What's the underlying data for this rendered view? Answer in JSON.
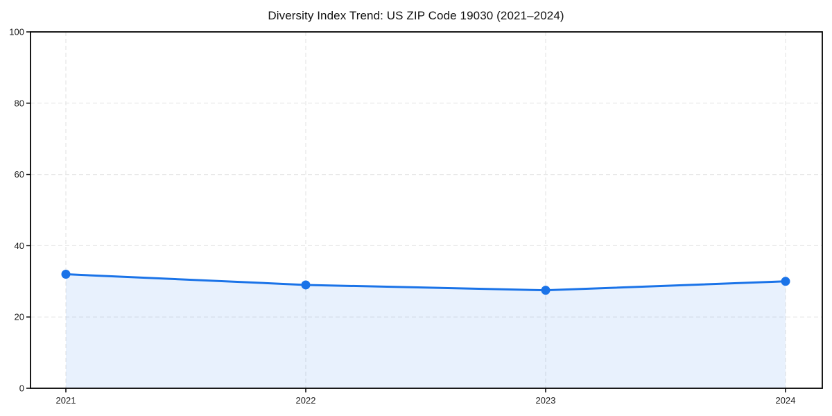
{
  "chart_data": {
    "type": "line",
    "title": "Diversity Index Trend: US ZIP Code 19030 (2021–2024)",
    "categories": [
      "2021",
      "2022",
      "2023",
      "2024"
    ],
    "series": [
      {
        "name": "Diversity Index",
        "values": [
          32,
          29,
          27.5,
          30
        ]
      }
    ],
    "xlabel": "",
    "ylabel": "",
    "ylim": [
      0,
      100
    ],
    "yticks": [
      0,
      20,
      40,
      60,
      80,
      100
    ],
    "grid": true,
    "grid_style": "dashed",
    "legend": "none",
    "marker": "circle",
    "colors": {
      "line": "#1a73e8",
      "marker": "#1a73e8",
      "area_fill": "rgba(26,115,232,0.10)",
      "gridline": "#e6e6e6",
      "axis_frame": "#000000",
      "title_text": "#111111",
      "tick_text": "#1a1a1a"
    }
  }
}
